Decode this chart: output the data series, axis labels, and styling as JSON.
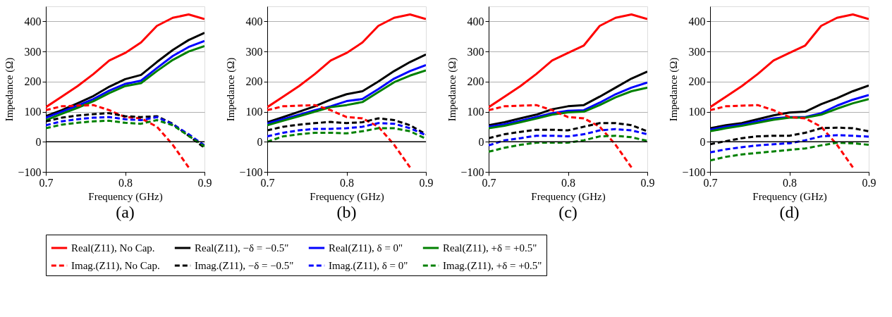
{
  "chart_data": [
    {
      "type": "line",
      "annotations": [
        "(a)"
      ],
      "xlabel": "Frequency (GHz)",
      "ylabel": "Impedance (Ω)",
      "x": [
        0.7,
        0.72,
        0.74,
        0.76,
        0.78,
        0.8,
        0.82,
        0.84,
        0.86,
        0.88,
        0.9
      ],
      "xlim": [
        0.7,
        0.9
      ],
      "xticks": [
        0.7,
        0.8,
        0.9
      ],
      "ylim": [
        -100,
        450
      ],
      "yticks": [
        -100,
        0,
        100,
        200,
        300,
        400
      ],
      "grid": "y",
      "legend": "bottom",
      "ref_lines": [
        {
          "axis": "y",
          "value": 0,
          "color": "#000000"
        }
      ],
      "series": [
        {
          "name": "Real(Z11), No Cap.",
          "color": "#ff0000",
          "line_style": "solid",
          "values": [
            115,
            150,
            185,
            225,
            270,
            295,
            330,
            385,
            412,
            423,
            408
          ]
        },
        {
          "name": "Real(Z11), −δ = −0.5\"",
          "color": "#000000",
          "line_style": "solid",
          "values": [
            85,
            105,
            128,
            152,
            183,
            208,
            222,
            265,
            305,
            338,
            362
          ]
        },
        {
          "name": "Real(Z11), δ = 0\"",
          "color": "#0000ff",
          "line_style": "solid",
          "values": [
            80,
            100,
            120,
            142,
            170,
            192,
            203,
            245,
            285,
            315,
            335
          ]
        },
        {
          "name": "Real(Z11), +δ = +0.5\"",
          "color": "#008000",
          "line_style": "solid",
          "values": [
            72,
            93,
            113,
            135,
            162,
            185,
            195,
            235,
            272,
            300,
            318
          ]
        },
        {
          "name": "Imag.(Z11), No Cap.",
          "color": "#ff0000",
          "line_style": "dashed",
          "values": [
            105,
            118,
            120,
            122,
            105,
            82,
            78,
            50,
            -10,
            -85,
            null
          ]
        },
        {
          "name": "Imag.(Z11), −δ = −0.5\"",
          "color": "#000000",
          "line_style": "dashed",
          "values": [
            68,
            80,
            87,
            92,
            95,
            85,
            82,
            85,
            60,
            20,
            -20
          ]
        },
        {
          "name": "Imag.(Z11), δ = 0\"",
          "color": "#0000ff",
          "line_style": "dashed",
          "values": [
            55,
            68,
            75,
            80,
            82,
            75,
            72,
            82,
            58,
            25,
            -12
          ]
        },
        {
          "name": "Imag.(Z11), +δ = +0.5\"",
          "color": "#008000",
          "line_style": "dashed",
          "values": [
            45,
            57,
            63,
            68,
            70,
            63,
            60,
            72,
            55,
            20,
            -15
          ]
        }
      ]
    },
    {
      "type": "line",
      "annotations": [
        "(b)"
      ],
      "xlabel": "Frequency (GHz)",
      "ylabel": "Impedance (Ω)",
      "x": [
        0.7,
        0.72,
        0.74,
        0.76,
        0.78,
        0.8,
        0.82,
        0.84,
        0.86,
        0.88,
        0.9
      ],
      "xlim": [
        0.7,
        0.9
      ],
      "xticks": [
        0.7,
        0.8,
        0.9
      ],
      "ylim": [
        -100,
        450
      ],
      "yticks": [
        -100,
        0,
        100,
        200,
        300,
        400
      ],
      "grid": "y",
      "legend": "bottom",
      "ref_lines": [
        {
          "axis": "y",
          "value": 0,
          "color": "#000000"
        }
      ],
      "series": [
        {
          "name": "Real(Z11), No Cap.",
          "color": "#ff0000",
          "line_style": "solid",
          "values": [
            115,
            150,
            185,
            225,
            270,
            295,
            330,
            385,
            412,
            423,
            408
          ]
        },
        {
          "name": "Real(Z11), −δ = −0.5\"",
          "color": "#000000",
          "line_style": "solid",
          "values": [
            65,
            82,
            100,
            118,
            140,
            158,
            168,
            200,
            235,
            265,
            290
          ]
        },
        {
          "name": "Real(Z11), δ = 0\"",
          "color": "#0000ff",
          "line_style": "solid",
          "values": [
            60,
            75,
            90,
            105,
            118,
            135,
            142,
            175,
            210,
            235,
            255
          ]
        },
        {
          "name": "Real(Z11), +δ = +0.5\"",
          "color": "#008000",
          "line_style": "solid",
          "values": [
            55,
            70,
            85,
            100,
            115,
            122,
            132,
            165,
            198,
            220,
            237
          ]
        },
        {
          "name": "Imag.(Z11), No Cap.",
          "color": "#ff0000",
          "line_style": "dashed",
          "values": [
            105,
            118,
            120,
            122,
            105,
            82,
            78,
            50,
            -10,
            -85,
            null
          ]
        },
        {
          "name": "Imag.(Z11), −δ = −0.5\"",
          "color": "#000000",
          "line_style": "dashed",
          "values": [
            38,
            50,
            57,
            62,
            66,
            62,
            65,
            78,
            72,
            55,
            25
          ]
        },
        {
          "name": "Imag.(Z11), δ = 0\"",
          "color": "#0000ff",
          "line_style": "dashed",
          "values": [
            18,
            30,
            38,
            43,
            43,
            45,
            50,
            62,
            60,
            45,
            22
          ]
        },
        {
          "name": "Imag.(Z11), +δ = +0.5\"",
          "color": "#008000",
          "line_style": "dashed",
          "values": [
            0,
            18,
            25,
            30,
            30,
            28,
            35,
            45,
            45,
            35,
            10
          ]
        }
      ]
    },
    {
      "type": "line",
      "annotations": [
        "(c)"
      ],
      "xlabel": "Frequency (GHz)",
      "ylabel": "Impedance (Ω)",
      "x": [
        0.7,
        0.72,
        0.74,
        0.76,
        0.78,
        0.8,
        0.82,
        0.84,
        0.86,
        0.88,
        0.9
      ],
      "xlim": [
        0.7,
        0.9
      ],
      "xticks": [
        0.7,
        0.8,
        0.9
      ],
      "ylim": [
        -100,
        450
      ],
      "yticks": [
        -100,
        0,
        100,
        200,
        300,
        400
      ],
      "grid": "y",
      "legend": "bottom",
      "ref_lines": [
        {
          "axis": "y",
          "value": 0,
          "color": "#000000"
        }
      ],
      "series": [
        {
          "name": "Real(Z11), No Cap.",
          "color": "#ff0000",
          "line_style": "solid",
          "values": [
            115,
            150,
            185,
            225,
            270,
            295,
            320,
            385,
            412,
            423,
            408
          ]
        },
        {
          "name": "Real(Z11), −δ = −0.5\"",
          "color": "#000000",
          "line_style": "solid",
          "values": [
            55,
            65,
            78,
            90,
            108,
            118,
            122,
            150,
            180,
            210,
            233
          ]
        },
        {
          "name": "Real(Z11), δ = 0\"",
          "color": "#0000ff",
          "line_style": "solid",
          "values": [
            50,
            58,
            70,
            82,
            95,
            103,
            105,
            130,
            158,
            180,
            197
          ]
        },
        {
          "name": "Real(Z11), +δ = +0.5\"",
          "color": "#008000",
          "line_style": "solid",
          "values": [
            45,
            53,
            65,
            77,
            90,
            98,
            100,
            122,
            148,
            168,
            180
          ]
        },
        {
          "name": "Imag.(Z11), No Cap.",
          "color": "#ff0000",
          "line_style": "dashed",
          "values": [
            105,
            118,
            120,
            122,
            105,
            82,
            78,
            50,
            -10,
            -85,
            null
          ]
        },
        {
          "name": "Imag.(Z11), −δ = −0.5\"",
          "color": "#000000",
          "line_style": "dashed",
          "values": [
            12,
            25,
            33,
            40,
            40,
            38,
            50,
            62,
            62,
            55,
            35
          ]
        },
        {
          "name": "Imag.(Z11), δ = 0\"",
          "color": "#0000ff",
          "line_style": "dashed",
          "values": [
            -12,
            5,
            12,
            20,
            20,
            18,
            25,
            38,
            42,
            38,
            25
          ]
        },
        {
          "name": "Imag.(Z11), +δ = +0.5\"",
          "color": "#008000",
          "line_style": "dashed",
          "values": [
            -33,
            -20,
            -10,
            -3,
            -3,
            -3,
            5,
            18,
            20,
            15,
            3
          ]
        }
      ]
    },
    {
      "type": "line",
      "annotations": [
        "(d)"
      ],
      "xlabel": "Frequency (GHz)",
      "ylabel": "Impedance (Ω)",
      "x": [
        0.7,
        0.72,
        0.74,
        0.76,
        0.78,
        0.8,
        0.82,
        0.84,
        0.86,
        0.88,
        0.9
      ],
      "xlim": [
        0.7,
        0.9
      ],
      "xticks": [
        0.7,
        0.8,
        0.9
      ],
      "ylim": [
        -100,
        450
      ],
      "yticks": [
        -100,
        0,
        100,
        200,
        300,
        400
      ],
      "grid": "y",
      "legend": "bottom",
      "ref_lines": [
        {
          "axis": "y",
          "value": 0,
          "color": "#000000"
        }
      ],
      "series": [
        {
          "name": "Real(Z11), No Cap.",
          "color": "#ff0000",
          "line_style": "solid",
          "values": [
            115,
            150,
            185,
            225,
            270,
            295,
            320,
            385,
            412,
            423,
            408
          ]
        },
        {
          "name": "Real(Z11), −δ = −0.5\"",
          "color": "#000000",
          "line_style": "solid",
          "values": [
            45,
            55,
            62,
            75,
            88,
            97,
            100,
            125,
            145,
            168,
            187
          ]
        },
        {
          "name": "Real(Z11), δ = 0\"",
          "color": "#0000ff",
          "line_style": "solid",
          "values": [
            40,
            50,
            57,
            68,
            78,
            82,
            82,
            95,
            120,
            140,
            155
          ]
        },
        {
          "name": "Real(Z11), +δ = +0.5\"",
          "color": "#008000",
          "line_style": "solid",
          "values": [
            35,
            45,
            53,
            63,
            73,
            80,
            80,
            90,
            110,
            128,
            142
          ]
        },
        {
          "name": "Imag.(Z11), No Cap.",
          "color": "#ff0000",
          "line_style": "dashed",
          "values": [
            105,
            118,
            120,
            122,
            105,
            82,
            78,
            50,
            -10,
            -85,
            null
          ]
        },
        {
          "name": "Imag.(Z11), −δ = −0.5\"",
          "color": "#000000",
          "line_style": "dashed",
          "values": [
            -8,
            2,
            12,
            18,
            20,
            20,
            30,
            45,
            47,
            45,
            35
          ]
        },
        {
          "name": "Imag.(Z11), δ = 0\"",
          "color": "#0000ff",
          "line_style": "dashed",
          "values": [
            -35,
            -25,
            -18,
            -12,
            -8,
            -5,
            5,
            18,
            22,
            20,
            17
          ]
        },
        {
          "name": "Imag.(Z11), +δ = +0.5\"",
          "color": "#008000",
          "line_style": "dashed",
          "values": [
            -62,
            -50,
            -42,
            -37,
            -32,
            -27,
            -22,
            -12,
            -3,
            -5,
            -10
          ]
        }
      ]
    }
  ]
}
